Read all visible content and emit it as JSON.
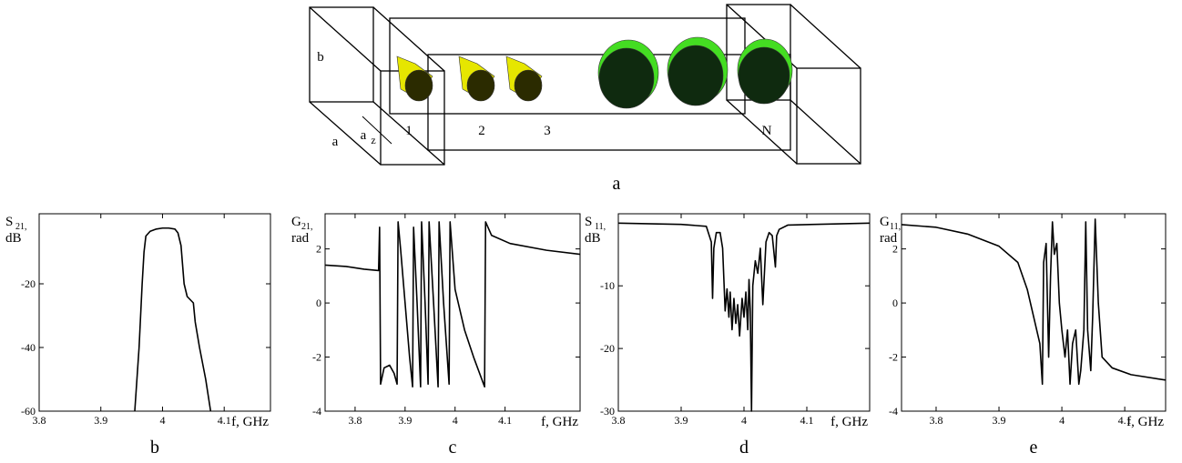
{
  "diagram": {
    "height_label": "b",
    "width_label": "a",
    "spacing_label": "a",
    "spacing_subscript": "z",
    "elements": [
      "1",
      "2",
      "3",
      "N"
    ],
    "caption": "a"
  },
  "chart_data": [
    {
      "type": "line",
      "caption": "b",
      "y_label": {
        "symbol": "S",
        "subscript": "21,",
        "unit": "dB"
      },
      "x_label": "f, GHz",
      "xlim": [
        3.8,
        4.175
      ],
      "xticks": [
        3.8,
        3.9,
        4,
        4.1
      ],
      "ylim": [
        -60,
        2
      ],
      "yticks": [
        -60,
        -40,
        -20
      ],
      "color": "#000000",
      "x": [
        3.955,
        3.962,
        3.967,
        3.97,
        3.973,
        3.98,
        3.99,
        4.0,
        4.01,
        4.02,
        4.025,
        4.03,
        4.035,
        4.04,
        4.05,
        4.053,
        4.06,
        4.07,
        4.078
      ],
      "values": [
        -60,
        -40,
        -20,
        -10,
        -5,
        -3.5,
        -2.8,
        -2.5,
        -2.5,
        -2.8,
        -4,
        -8,
        -20,
        -24,
        -26,
        -32,
        -40,
        -50,
        -60
      ]
    },
    {
      "type": "line",
      "caption": "c",
      "y_label": {
        "symbol": "G",
        "subscript": "21,",
        "unit": "rad"
      },
      "x_label": "f, GHz",
      "xlim": [
        3.74,
        4.25
      ],
      "xticks": [
        3.8,
        3.9,
        4,
        4.1
      ],
      "ylim": [
        -4,
        3.3
      ],
      "yticks": [
        -4,
        -2,
        0,
        2
      ],
      "color": "#000000",
      "x": [
        3.74,
        3.782,
        3.818,
        3.847,
        3.849,
        3.851,
        3.858,
        3.869,
        3.878,
        3.884,
        3.886,
        3.891,
        3.9,
        3.909,
        3.915,
        3.917,
        3.924,
        3.931,
        3.933,
        3.94,
        3.946,
        3.948,
        3.957,
        3.966,
        3.968,
        3.977,
        3.988,
        3.99,
        4.0,
        4.019,
        4.037,
        4.059,
        4.061,
        4.073,
        4.11,
        4.183,
        4.25
      ],
      "values": [
        1.4,
        1.35,
        1.25,
        1.2,
        2.8,
        -3,
        -2.4,
        -2.3,
        -2.6,
        -3,
        3,
        2,
        0,
        -2,
        -3.1,
        2.8,
        0,
        -3.1,
        3,
        0,
        -3,
        3,
        0,
        -3.1,
        3,
        0,
        -3,
        3,
        0.5,
        -1,
        -2,
        -3.1,
        3,
        2.5,
        2.2,
        1.95,
        1.8
      ]
    },
    {
      "type": "line",
      "caption": "d",
      "y_label": {
        "symbol": "S",
        "subscript": "11,",
        "unit": "dB"
      },
      "x_label": "f, GHz",
      "xlim": [
        3.8,
        4.2
      ],
      "xticks": [
        3.8,
        3.9,
        4,
        4.1
      ],
      "ylim": [
        -30,
        1.5
      ],
      "yticks": [
        -30,
        -20,
        -10
      ],
      "color": "#000000",
      "x": [
        3.8,
        3.9,
        3.94,
        3.948,
        3.95,
        3.952,
        3.956,
        3.962,
        3.966,
        3.97,
        3.973,
        3.976,
        3.978,
        3.981,
        3.984,
        3.987,
        3.99,
        3.993,
        3.997,
        4.0,
        4.003,
        4.006,
        4.008,
        4.01,
        4.012,
        4.014,
        4.018,
        4.022,
        4.026,
        4.03,
        4.035,
        4.04,
        4.045,
        4.05,
        4.052,
        4.056,
        4.07,
        4.2
      ],
      "values": [
        0,
        -0.2,
        -0.5,
        -3,
        -12,
        -4,
        -1.5,
        -1.5,
        -4,
        -14,
        -10.5,
        -15,
        -11,
        -17,
        -12,
        -16,
        -13,
        -18,
        -12,
        -15,
        -11,
        -17,
        -9,
        -14,
        -30,
        -10,
        -6,
        -8,
        -4,
        -13,
        -3,
        -1.5,
        -2,
        -7,
        -2,
        -1,
        -0.3,
        0
      ]
    },
    {
      "type": "line",
      "caption": "e",
      "y_label": {
        "symbol": "G",
        "subscript": "11,",
        "unit": "rad"
      },
      "x_label": "f, GHz",
      "xlim": [
        3.745,
        4.165
      ],
      "xticks": [
        3.8,
        3.9,
        4,
        4.1
      ],
      "ylim": [
        -4,
        3.3
      ],
      "yticks": [
        -4,
        -2,
        0,
        2
      ],
      "color": "#000000",
      "x": [
        3.745,
        3.8,
        3.85,
        3.9,
        3.93,
        3.945,
        3.955,
        3.965,
        3.969,
        3.971,
        3.975,
        3.979,
        3.982,
        3.985,
        3.988,
        3.992,
        3.996,
        4.0,
        4.005,
        4.009,
        4.013,
        4.017,
        4.022,
        4.027,
        4.03,
        4.035,
        4.038,
        4.041,
        4.046,
        4.049,
        4.053,
        4.058,
        4.064,
        4.08,
        4.11,
        4.165
      ],
      "values": [
        2.9,
        2.8,
        2.55,
        2.1,
        1.5,
        0.5,
        -0.5,
        -1.5,
        -3,
        1.5,
        2.2,
        -2,
        1,
        3,
        1.8,
        2.2,
        0,
        -1,
        -2,
        -1,
        -3,
        -1.5,
        -1,
        -3,
        -2.5,
        -1,
        3,
        -1,
        -2.5,
        -0.5,
        3.1,
        0,
        -2,
        -2.4,
        -2.65,
        -2.85
      ]
    }
  ]
}
